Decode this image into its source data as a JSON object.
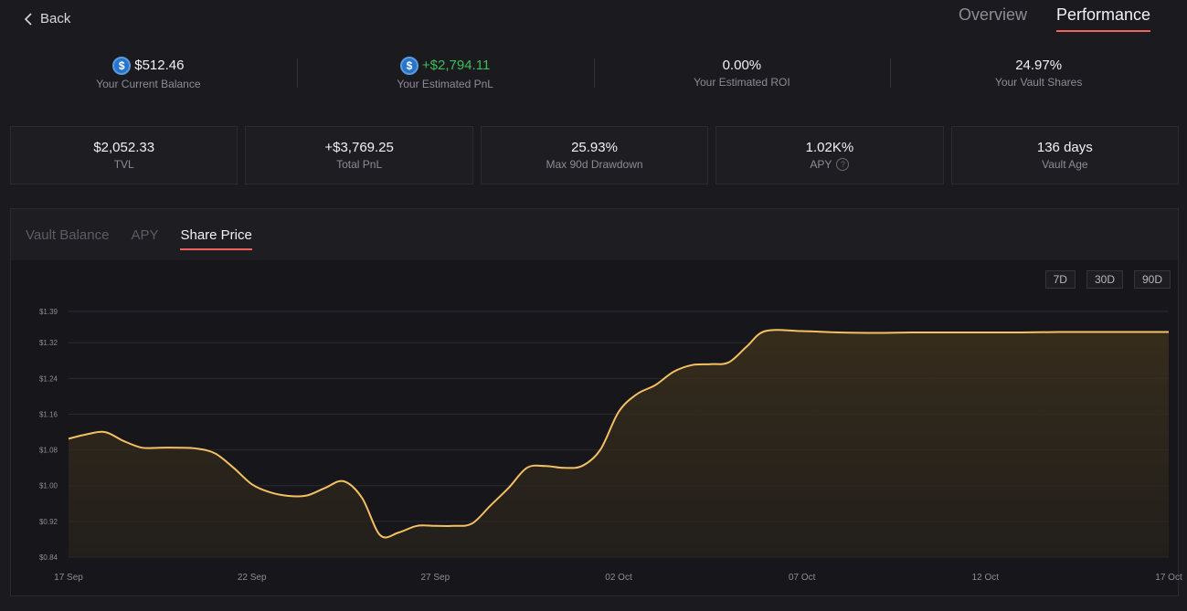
{
  "nav": {
    "back_label": "Back"
  },
  "top_tabs": [
    {
      "label": "Overview",
      "active": false
    },
    {
      "label": "Performance",
      "active": true
    }
  ],
  "summary": [
    {
      "value": "$512.46",
      "label": "Your Current Balance",
      "icon": "usdc-coin-icon"
    },
    {
      "value": "+$2,794.11",
      "label": "Your Estimated PnL",
      "icon": "usdc-coin-icon"
    },
    {
      "value": "0.00%",
      "label": "Your Estimated ROI"
    },
    {
      "value": "24.97%",
      "label": "Your Vault Shares"
    }
  ],
  "stats": [
    {
      "value": "$2,052.33",
      "label": "TVL"
    },
    {
      "value": "+$3,769.25",
      "label": "Total PnL"
    },
    {
      "value": "25.93%",
      "label": "Max 90d Drawdown"
    },
    {
      "value": "1.02K%",
      "label": "APY"
    },
    {
      "value": "136 days",
      "label": "Vault Age"
    }
  ],
  "chart_tabs": [
    {
      "label": "Vault Balance",
      "active": false
    },
    {
      "label": "APY",
      "active": false
    },
    {
      "label": "Share Price",
      "active": true
    }
  ],
  "range_buttons": [
    "7D",
    "30D",
    "90D"
  ],
  "colors": {
    "accent_underline": "#f0625c",
    "positive": "#3fbd5a",
    "line": "#f5c061",
    "coin": "#2775ca"
  },
  "chart_data": {
    "type": "area",
    "title": "",
    "xlabel": "",
    "ylabel": "",
    "y_ticks": [
      "$0.84",
      "$0.92",
      "$1.00",
      "$1.08",
      "$1.16",
      "$1.24",
      "$1.32",
      "$1.39"
    ],
    "y_tick_values": [
      0.84,
      0.92,
      1.0,
      1.08,
      1.16,
      1.24,
      1.32,
      1.39
    ],
    "x_ticks": [
      "17 Sep",
      "22 Sep",
      "27 Sep",
      "02 Oct",
      "07 Oct",
      "12 Oct",
      "17 Oct"
    ],
    "ylim": [
      0.84,
      1.39
    ],
    "xlim": [
      0,
      30
    ],
    "grid": true,
    "series": [
      {
        "x": [
          0,
          0.5,
          1,
          1.5,
          2,
          2.5,
          3,
          3.5,
          4,
          4.5,
          5,
          5.5,
          6,
          6.5,
          7,
          7.5,
          8,
          8.5,
          9,
          9.5,
          10,
          10.5,
          11,
          11.5,
          12,
          12.5,
          13,
          13.5,
          14,
          14.5,
          15,
          15.5,
          16,
          16.5,
          17,
          17.5,
          18,
          18.5,
          19,
          20,
          21,
          22,
          23,
          24,
          25,
          26,
          27,
          28,
          29,
          30
        ],
        "values": [
          1.105,
          1.115,
          1.12,
          1.1,
          1.085,
          1.085,
          1.085,
          1.083,
          1.072,
          1.04,
          1.003,
          0.985,
          0.977,
          0.978,
          0.995,
          1.01,
          0.973,
          0.889,
          0.895,
          0.91,
          0.91,
          0.91,
          0.915,
          0.955,
          0.995,
          1.04,
          1.044,
          1.04,
          1.044,
          1.08,
          1.165,
          1.205,
          1.225,
          1.255,
          1.27,
          1.272,
          1.276,
          1.312,
          1.346,
          1.346,
          1.343,
          1.342,
          1.343,
          1.343,
          1.343,
          1.343,
          1.344,
          1.344,
          1.344,
          1.344
        ]
      }
    ]
  }
}
